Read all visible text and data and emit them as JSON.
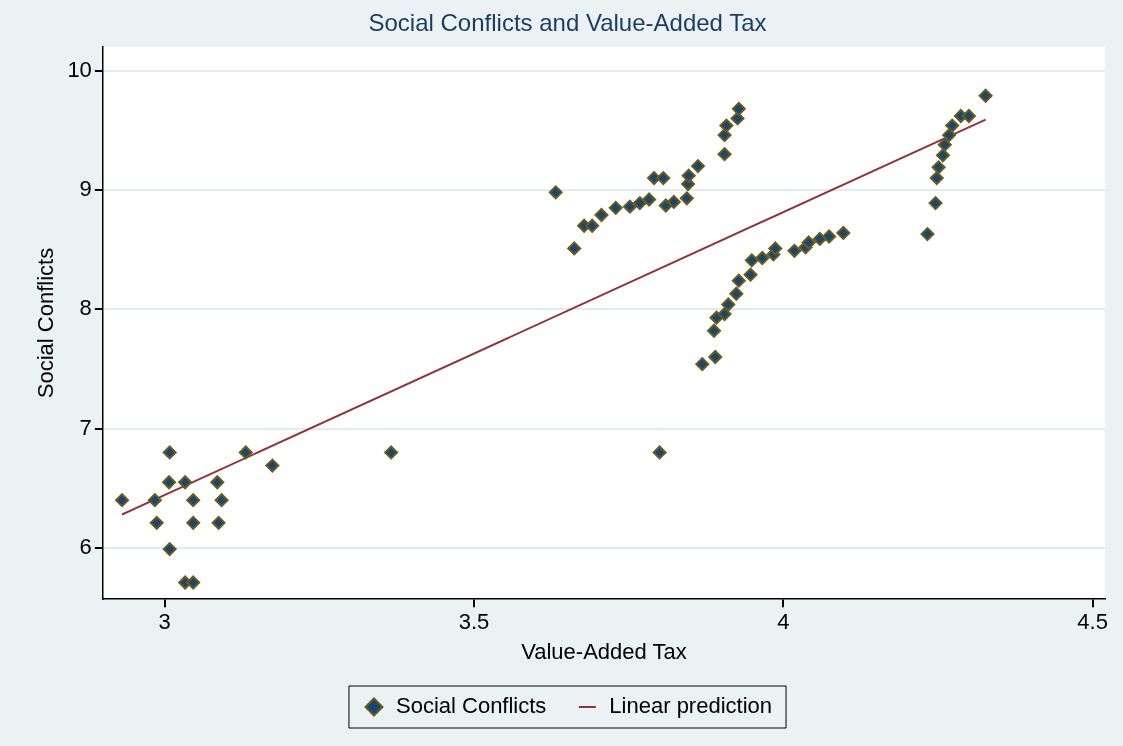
{
  "chart_data": {
    "type": "scatter",
    "title": "Social Conflicts and Value-Added Tax",
    "xlabel": "Value-Added Tax",
    "ylabel": "Social Conflicts",
    "xlim": [
      2.9,
      4.52
    ],
    "xticks": [
      3,
      3.5,
      4,
      4.5
    ],
    "ylim": [
      5.57,
      10.2
    ],
    "yticks": [
      6,
      7,
      8,
      9,
      10
    ],
    "grid": "y",
    "legend": "bottom",
    "series": [
      {
        "name": "Social Conflicts",
        "marker": "diamond",
        "color": "#1a476f",
        "x": [
          2.931,
          2.984,
          2.987,
          3.008,
          3.007,
          3.008,
          3.033,
          3.046,
          3.046,
          3.033,
          3.046,
          3.085,
          3.092,
          3.087,
          3.131,
          3.174,
          3.366,
          3.8,
          3.632,
          3.662,
          3.678,
          3.691,
          3.706,
          3.729,
          3.752,
          3.768,
          3.783,
          3.791,
          3.806,
          3.81,
          3.823,
          3.844,
          3.846,
          3.847,
          3.862,
          3.905,
          3.905,
          3.908,
          3.926,
          3.928,
          3.869,
          3.89,
          3.888,
          3.892,
          3.905,
          3.911,
          3.924,
          3.928,
          3.947,
          3.949,
          3.966,
          3.984,
          3.987,
          4.018,
          4.036,
          4.041,
          4.059,
          4.074,
          4.097,
          4.233,
          4.246,
          4.248,
          4.251,
          4.258,
          4.261,
          4.268,
          4.273,
          4.287,
          4.3,
          4.327
        ],
        "values": [
          6.4,
          6.4,
          6.21,
          6.8,
          6.55,
          5.99,
          6.55,
          6.4,
          6.21,
          5.71,
          5.71,
          6.55,
          6.4,
          6.21,
          6.8,
          6.69,
          6.8,
          6.8,
          8.98,
          8.51,
          8.7,
          8.7,
          8.79,
          8.85,
          8.86,
          8.89,
          8.92,
          9.1,
          9.1,
          8.87,
          8.9,
          8.93,
          9.05,
          9.12,
          9.2,
          9.3,
          9.46,
          9.54,
          9.6,
          9.68,
          7.54,
          7.6,
          7.82,
          7.93,
          7.96,
          8.04,
          8.13,
          8.24,
          8.29,
          8.41,
          8.43,
          8.46,
          8.51,
          8.49,
          8.52,
          8.56,
          8.59,
          8.61,
          8.64,
          8.63,
          8.89,
          9.1,
          9.19,
          9.29,
          9.38,
          9.46,
          9.54,
          9.62,
          9.62,
          9.79
        ]
      },
      {
        "name": "Linear prediction",
        "type": "line",
        "marker": "none",
        "color": "#90353b",
        "x": [
          2.931,
          4.327
        ],
        "values": [
          6.28,
          9.59
        ]
      }
    ]
  }
}
